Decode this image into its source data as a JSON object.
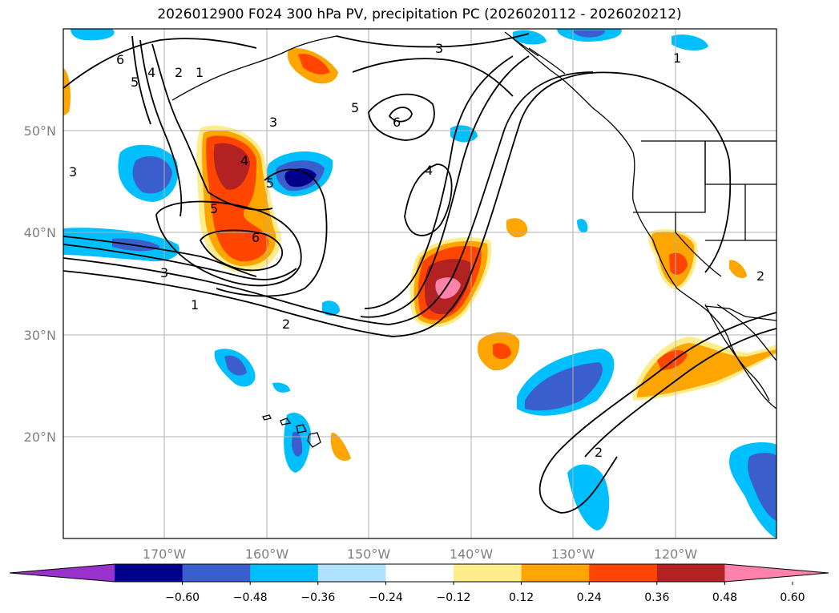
{
  "title": "2026012900 F024 300 hPa PV, precipitation PC (2026020112 - 2026020212)",
  "map": {
    "lat_ticks": [
      "50°N",
      "40°N",
      "30°N",
      "20°N"
    ],
    "lon_ticks": [
      "170°W",
      "160°W",
      "150°W",
      "140°W",
      "130°W",
      "120°W"
    ],
    "contour_labels": [
      "1",
      "2",
      "3",
      "4",
      "5",
      "6"
    ]
  },
  "colorbar": {
    "ticks": [
      "−0.60",
      "−0.48",
      "−0.36",
      "−0.24",
      "−0.12",
      "0.12",
      "0.24",
      "0.36",
      "0.48",
      "0.60"
    ],
    "colors": [
      "#9932cc",
      "#00008b",
      "#3a5fcd",
      "#00bfff",
      "#b0e2ff",
      "#ffffff",
      "#ffec8b",
      "#ffa500",
      "#ff4500",
      "#b22222",
      "#ff82ab"
    ]
  },
  "colors": {
    "coast": "#000000",
    "grid": "#b0b0b0",
    "contour": "#000000"
  }
}
